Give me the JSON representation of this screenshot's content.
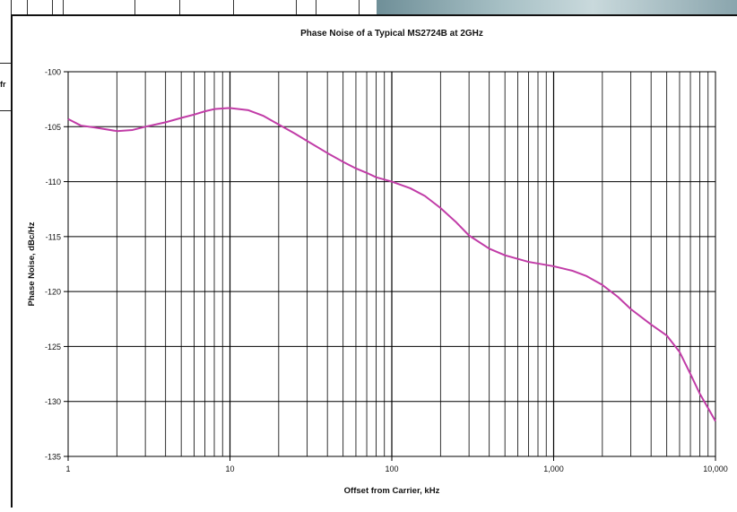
{
  "background": {
    "left_cut_text": "fr"
  },
  "chart_data": {
    "type": "line",
    "title": "Phase Noise of a Typical MS2724B at 2GHz",
    "xlabel": "Offset from Carrier, kHz",
    "ylabel": "Phase Noise, dBc/Hz",
    "x_scale": "log",
    "xlim": [
      1,
      10000
    ],
    "ylim": [
      -135,
      -100
    ],
    "x_ticks": [
      1,
      10,
      100,
      1000,
      10000
    ],
    "x_tick_labels": [
      "1",
      "10",
      "100",
      "1,000",
      "10,000"
    ],
    "y_ticks": [
      -100,
      -105,
      -110,
      -115,
      -120,
      -125,
      -130,
      -135
    ],
    "y_tick_labels": [
      "-100",
      "-105",
      "-110",
      "-115",
      "-120",
      "-125",
      "-130",
      "-135"
    ],
    "grid": true,
    "line_color": "#c13ca7",
    "series": [
      {
        "x": [
          1,
          1.2,
          1.5,
          2,
          2.5,
          3,
          4,
          5,
          6,
          7,
          8,
          10,
          13,
          16,
          20,
          25,
          30,
          40,
          50,
          60,
          70,
          80,
          100,
          130,
          160,
          200,
          250,
          300,
          400,
          500,
          700,
          1000,
          1300,
          1600,
          2000,
          2500,
          3000,
          4000,
          5000,
          6000,
          7000,
          8000,
          9000,
          10000
        ],
        "y": [
          -104.3,
          -104.9,
          -105.1,
          -105.4,
          -105.3,
          -105.0,
          -104.6,
          -104.2,
          -103.9,
          -103.6,
          -103.4,
          -103.3,
          -103.5,
          -104.0,
          -104.8,
          -105.6,
          -106.3,
          -107.4,
          -108.2,
          -108.8,
          -109.2,
          -109.6,
          -110.0,
          -110.6,
          -111.3,
          -112.4,
          -113.7,
          -114.9,
          -116.1,
          -116.7,
          -117.3,
          -117.7,
          -118.1,
          -118.6,
          -119.4,
          -120.5,
          -121.6,
          -123.0,
          -124.0,
          -125.5,
          -127.5,
          -129.3,
          -130.6,
          -131.8
        ]
      }
    ]
  }
}
